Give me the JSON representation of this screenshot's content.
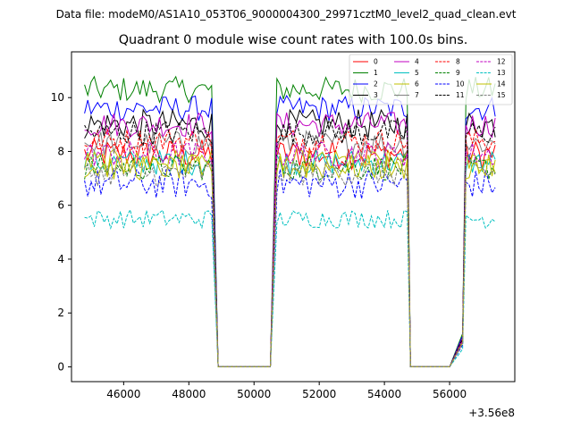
{
  "header": {
    "data_file": "Data file: modeM0/AS1A10_053T06_9000004300_29971cztM0_level2_quad_clean.evt"
  },
  "chart_data": {
    "type": "line",
    "title": "Quadrant 0 module wise count rates with 100.0s bins.",
    "xlabel": "",
    "ylabel": "",
    "x_offset_label": "+3.56e8",
    "xlim": [
      44400,
      58000
    ],
    "ylim": [
      -0.55,
      11.7
    ],
    "xticks": [
      46000,
      48000,
      50000,
      52000,
      54000,
      56000
    ],
    "xtick_labels": [
      "46000",
      "48000",
      "50000",
      "52000",
      "54000",
      "56000"
    ],
    "yticks": [
      0,
      2,
      4,
      6,
      8,
      10
    ],
    "ytick_labels": [
      "0",
      "2",
      "4",
      "6",
      "8",
      "10"
    ],
    "segments": [
      {
        "start": 44800,
        "end": 48700
      },
      {
        "start": 50700,
        "end": 54700
      },
      {
        "start": 56500,
        "end": 57400
      }
    ],
    "gaps": [
      {
        "ramp_down_start": 48700,
        "zero_start": 48900,
        "zero_end": 50500,
        "ramp_up_end": 50700
      },
      {
        "ramp_down_start": 54700,
        "zero_start": 54800,
        "zero_end": 56300,
        "ramp_up_end": 56500
      }
    ],
    "series": [
      {
        "name": "0",
        "color": "#ff0000",
        "dash": "solid",
        "mean": 7.9,
        "noise": 0.35
      },
      {
        "name": "1",
        "color": "#008000",
        "dash": "solid",
        "mean": 10.3,
        "noise": 0.3
      },
      {
        "name": "2",
        "color": "#0000ff",
        "dash": "solid",
        "mean": 9.6,
        "noise": 0.3
      },
      {
        "name": "3",
        "color": "#000000",
        "dash": "solid",
        "mean": 9.0,
        "noise": 0.35
      },
      {
        "name": "4",
        "color": "#c000c0",
        "dash": "solid",
        "mean": 9.0,
        "noise": 0.3
      },
      {
        "name": "5",
        "color": "#00c0c0",
        "dash": "solid",
        "mean": 7.6,
        "noise": 0.3
      },
      {
        "name": "6",
        "color": "#c0c000",
        "dash": "solid",
        "mean": 7.6,
        "noise": 0.3
      },
      {
        "name": "7",
        "color": "#808080",
        "dash": "solid",
        "mean": 8.3,
        "noise": 0.3
      },
      {
        "name": "8",
        "color": "#ff0000",
        "dash": "dashed",
        "mean": 8.4,
        "noise": 0.3
      },
      {
        "name": "9",
        "color": "#008000",
        "dash": "dashed",
        "mean": 7.4,
        "noise": 0.3
      },
      {
        "name": "10",
        "color": "#0000ff",
        "dash": "dashed",
        "mean": 6.8,
        "noise": 0.35
      },
      {
        "name": "11",
        "color": "#000000",
        "dash": "dashed",
        "mean": 8.7,
        "noise": 0.3
      },
      {
        "name": "12",
        "color": "#c000c0",
        "dash": "dashed",
        "mean": 7.9,
        "noise": 0.3
      },
      {
        "name": "13",
        "color": "#00c0c0",
        "dash": "dashed",
        "mean": 5.5,
        "noise": 0.22
      },
      {
        "name": "14",
        "color": "#c0c000",
        "dash": "solid",
        "mean": 7.4,
        "noise": 0.3
      },
      {
        "name": "15",
        "color": "#808080",
        "dash": "dashed",
        "mean": 7.2,
        "noise": 0.3
      }
    ],
    "legend_location": "top-right",
    "legend_columns": 4,
    "grid": false
  }
}
